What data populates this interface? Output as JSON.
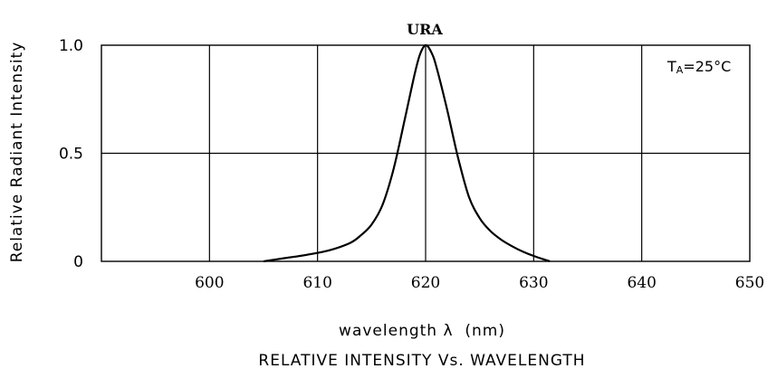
{
  "chart_data": {
    "type": "line",
    "title": "RELATIVE INTENSITY Vs. WAVELENGTH",
    "xlabel": "wavelength λ  (nm)",
    "ylabel": "Relative Radiant Intensity",
    "xlim": [
      590,
      650
    ],
    "ylim": [
      0,
      1.0
    ],
    "x_ticks": [
      "600",
      "610",
      "620",
      "630",
      "640",
      "650"
    ],
    "y_ticks": [
      "0",
      "0.5",
      "1.0"
    ],
    "grid": true,
    "series": [
      {
        "name": "URA",
        "x": [
          605,
          607,
          609,
          611,
          613,
          614,
          615,
          616,
          617,
          618,
          619,
          619.5,
          620,
          620.5,
          621,
          622,
          623,
          624,
          625,
          626,
          627,
          628,
          629,
          630,
          631,
          631.5
        ],
        "y": [
          0.0,
          0.015,
          0.03,
          0.05,
          0.085,
          0.12,
          0.17,
          0.26,
          0.42,
          0.64,
          0.87,
          0.96,
          1.0,
          0.97,
          0.9,
          0.7,
          0.48,
          0.3,
          0.2,
          0.14,
          0.1,
          0.07,
          0.045,
          0.025,
          0.008,
          0.0
        ]
      }
    ],
    "annotations": {
      "ta_main": "TA",
      "ta_sub": "A",
      "ta_prefix": "T",
      "ta_value": "=25°C"
    }
  }
}
